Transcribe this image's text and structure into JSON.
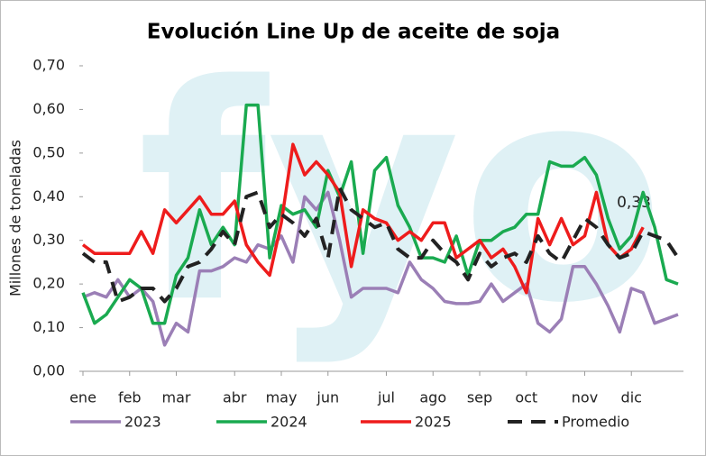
{
  "chart_data": {
    "type": "line",
    "title": "Evolución Line Up de aceite de soja",
    "y_label": "Millones de toneladas",
    "watermark": "fyo",
    "annotation": "0,33",
    "categories": [
      "ene",
      null,
      null,
      null,
      "feb",
      null,
      null,
      null,
      "mar",
      null,
      null,
      null,
      null,
      "abr",
      null,
      null,
      null,
      "may",
      null,
      null,
      null,
      "jun",
      null,
      null,
      null,
      null,
      "jul",
      null,
      null,
      null,
      "ago",
      null,
      null,
      null,
      "sep",
      null,
      null,
      null,
      "oct",
      null,
      null,
      null,
      null,
      "nov",
      null,
      null,
      null,
      "dic",
      null,
      null,
      null,
      null
    ],
    "ylim": [
      0,
      0.7
    ],
    "yticks": [
      {
        "value": 0,
        "label": "0,00"
      },
      {
        "value": 0.1,
        "label": "0,10"
      },
      {
        "value": 0.2,
        "label": "0,20"
      },
      {
        "value": 0.3,
        "label": "0,30"
      },
      {
        "value": 0.4,
        "label": "0,40"
      },
      {
        "value": 0.5,
        "label": "0,50"
      },
      {
        "value": 0.6,
        "label": "0,60"
      },
      {
        "value": 0.7,
        "label": "0,70"
      }
    ],
    "grid": false,
    "series": [
      {
        "name": "2023",
        "color": "#9b7fb6",
        "dash": false,
        "values": [
          0.17,
          0.18,
          0.17,
          0.21,
          0.17,
          0.19,
          0.16,
          0.06,
          0.11,
          0.09,
          0.23,
          0.23,
          0.24,
          0.26,
          0.25,
          0.29,
          0.28,
          0.31,
          0.25,
          0.4,
          0.37,
          0.41,
          0.3,
          0.17,
          0.19,
          0.19,
          0.19,
          0.18,
          0.25,
          0.21,
          0.19,
          0.16,
          0.155,
          0.155,
          0.16,
          0.2,
          0.16,
          0.18,
          0.2,
          0.11,
          0.09,
          0.12,
          0.24,
          0.24,
          0.2,
          0.15,
          0.09,
          0.19,
          0.18,
          0.11,
          0.12,
          0.13
        ]
      },
      {
        "name": "2024",
        "color": "#1aaa50",
        "dash": false,
        "values": [
          0.18,
          0.11,
          0.13,
          0.17,
          0.21,
          0.19,
          0.11,
          0.11,
          0.22,
          0.26,
          0.37,
          0.29,
          0.33,
          0.29,
          0.61,
          0.61,
          0.26,
          0.38,
          0.36,
          0.37,
          0.33,
          0.46,
          0.4,
          0.48,
          0.27,
          0.46,
          0.49,
          0.38,
          0.33,
          0.26,
          0.26,
          0.25,
          0.31,
          0.22,
          0.3,
          0.3,
          0.32,
          0.33,
          0.36,
          0.36,
          0.48,
          0.47,
          0.47,
          0.49,
          0.45,
          0.35,
          0.28,
          0.31,
          0.41,
          0.33,
          0.21,
          0.2
        ]
      },
      {
        "name": "2025",
        "color": "#ee1c1c",
        "dash": false,
        "values": [
          0.29,
          0.27,
          0.27,
          0.27,
          0.27,
          0.32,
          0.27,
          0.37,
          0.34,
          0.37,
          0.4,
          0.36,
          0.36,
          0.39,
          0.29,
          0.25,
          0.22,
          0.34,
          0.52,
          0.45,
          0.48,
          0.45,
          0.41,
          0.24,
          0.37,
          0.35,
          0.34,
          0.3,
          0.32,
          0.3,
          0.34,
          0.34,
          0.26,
          0.28,
          0.3,
          0.26,
          0.28,
          0.24,
          0.18,
          0.35,
          0.29,
          0.35,
          0.29,
          0.31,
          0.41,
          0.29,
          0.26,
          0.28,
          0.33,
          null,
          null,
          null
        ]
      },
      {
        "name": "Promedio",
        "color": "#222222",
        "dash": true,
        "values": [
          0.27,
          0.25,
          0.25,
          0.16,
          0.17,
          0.19,
          0.19,
          0.16,
          0.19,
          0.24,
          0.25,
          0.28,
          0.32,
          0.29,
          0.4,
          0.41,
          0.33,
          0.36,
          0.34,
          0.31,
          0.35,
          0.26,
          0.42,
          0.37,
          0.35,
          0.33,
          0.34,
          0.28,
          0.26,
          0.26,
          0.3,
          0.27,
          0.25,
          0.21,
          0.27,
          0.24,
          0.26,
          0.27,
          0.25,
          0.31,
          0.27,
          0.25,
          0.3,
          0.35,
          0.33,
          0.29,
          0.26,
          0.27,
          0.32,
          0.31,
          0.3,
          0.26
        ]
      }
    ]
  }
}
